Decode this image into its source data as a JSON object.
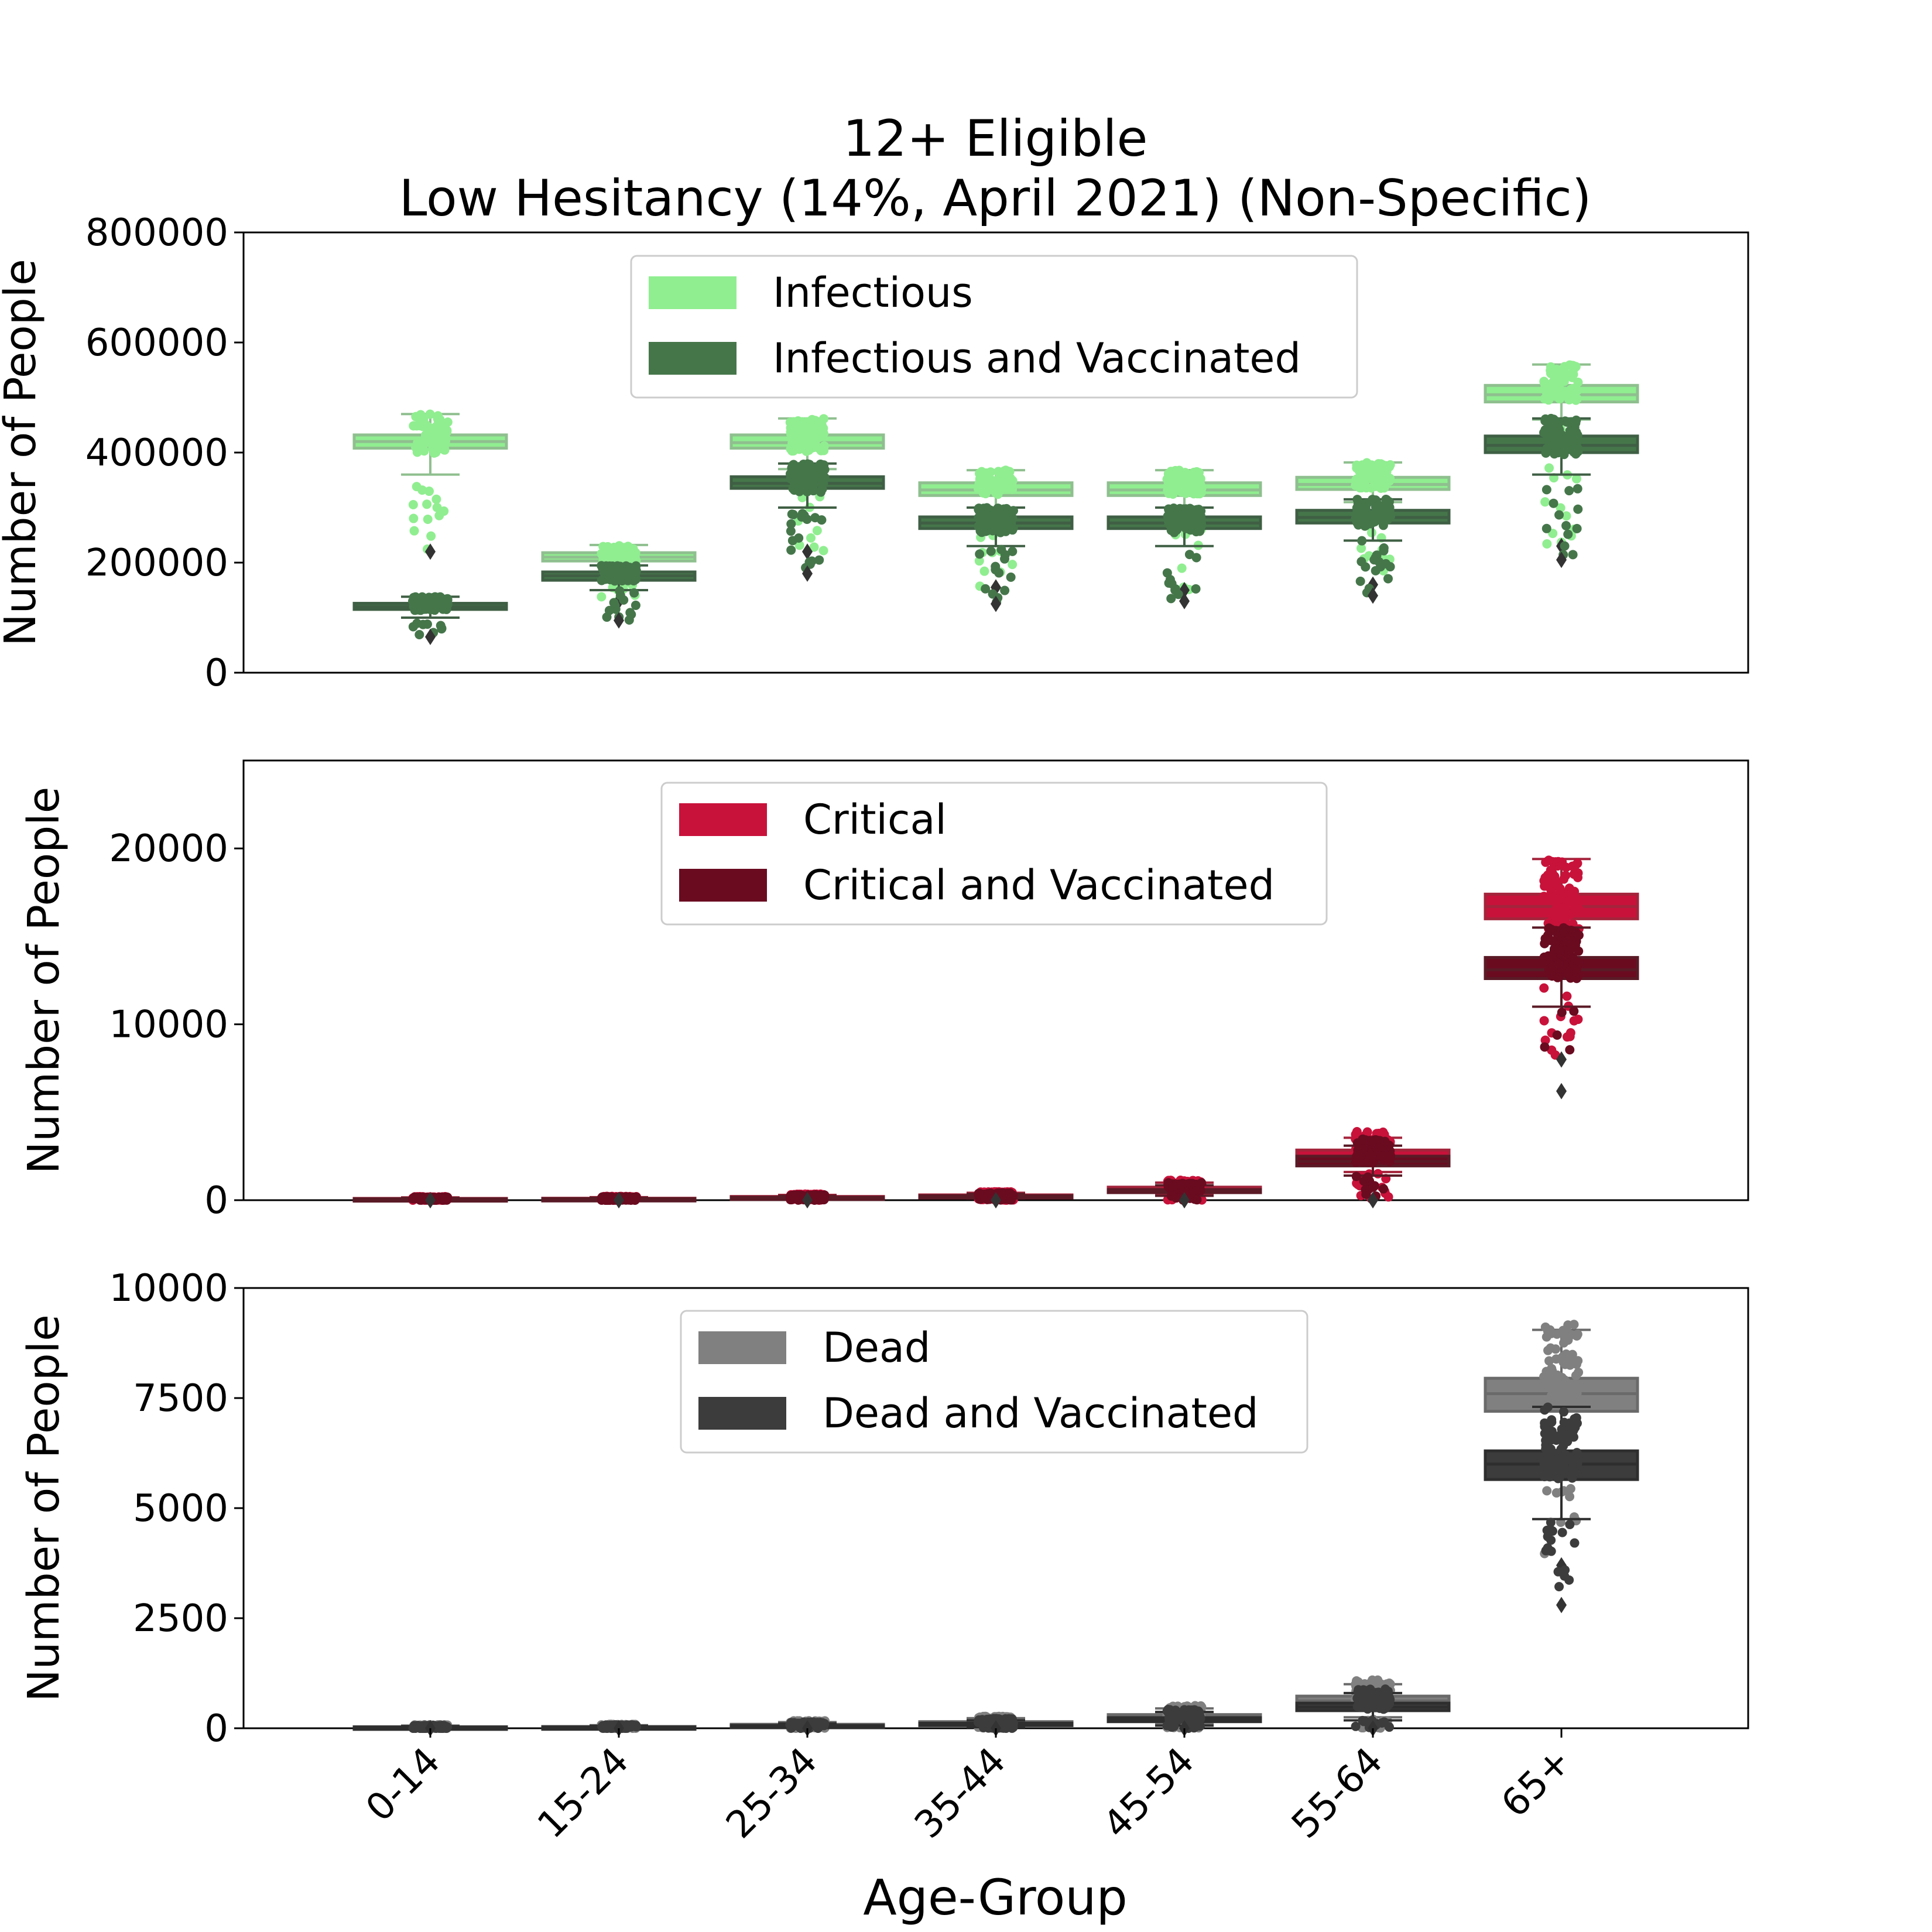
{
  "chart_data": {
    "type": "box",
    "title": [
      "12+ Eligible",
      "Low Hesitancy (14%, April 2021) (Non-Specific)"
    ],
    "xlabel": "Age-Group",
    "categories": [
      "0-14",
      "15-24",
      "25-34",
      "35-44",
      "45-54",
      "55-64",
      "65+"
    ],
    "panels": [
      {
        "ylabel": "Number of People",
        "ylim": [
          0,
          800000
        ],
        "yticks": [
          0,
          200000,
          400000,
          600000,
          800000
        ],
        "ytick_labels": [
          "0",
          "200000",
          "400000",
          "600000",
          "800000"
        ],
        "legend_position": "top-center",
        "series": [
          {
            "name": "Infectious",
            "color": "#90ee90",
            "box_color": "#8fbf8f",
            "stats": [
              {
                "q1": 408000,
                "median": 420000,
                "q3": 432000,
                "whislo": 360000,
                "whishi": 470000,
                "ptmin": 220000,
                "ptmax": 470000
              },
              {
                "q1": 203000,
                "median": 210000,
                "q3": 218000,
                "whislo": 180000,
                "whishi": 232000,
                "ptmin": 130000,
                "ptmax": 232000
              },
              {
                "q1": 408000,
                "median": 418000,
                "q3": 432000,
                "whislo": 370000,
                "whishi": 462000,
                "ptmin": 220000,
                "ptmax": 462000
              },
              {
                "q1": 322000,
                "median": 332000,
                "q3": 345000,
                "whislo": 300000,
                "whishi": 368000,
                "ptmin": 155000,
                "ptmax": 368000
              },
              {
                "q1": 322000,
                "median": 332000,
                "q3": 345000,
                "whislo": 300000,
                "whishi": 368000,
                "ptmin": 150000,
                "ptmax": 368000
              },
              {
                "q1": 333000,
                "median": 342000,
                "q3": 355000,
                "whislo": 310000,
                "whishi": 382000,
                "ptmin": 160000,
                "ptmax": 382000
              },
              {
                "q1": 492000,
                "median": 505000,
                "q3": 522000,
                "whislo": 460000,
                "whishi": 560000,
                "ptmin": 230000,
                "ptmax": 560000
              }
            ]
          },
          {
            "name": "Infectious and Vaccinated",
            "color": "#45764a",
            "box_color": "#3f5f44",
            "stats": [
              {
                "q1": 115000,
                "median": 120000,
                "q3": 126000,
                "whislo": 100000,
                "whishi": 138000,
                "ptmin": 65000,
                "ptmax": 138000
              },
              {
                "q1": 168000,
                "median": 176000,
                "q3": 183000,
                "whislo": 150000,
                "whishi": 195000,
                "ptmin": 95000,
                "ptmax": 195000
              },
              {
                "q1": 335000,
                "median": 344000,
                "q3": 356000,
                "whislo": 300000,
                "whishi": 380000,
                "ptmin": 180000,
                "ptmax": 380000
              },
              {
                "q1": 262000,
                "median": 272000,
                "q3": 283000,
                "whislo": 230000,
                "whishi": 300000,
                "ptmin": 125000,
                "ptmax": 300000
              },
              {
                "q1": 262000,
                "median": 272000,
                "q3": 283000,
                "whislo": 230000,
                "whishi": 300000,
                "ptmin": 130000,
                "ptmax": 300000
              },
              {
                "q1": 272000,
                "median": 282000,
                "q3": 295000,
                "whislo": 240000,
                "whishi": 315000,
                "ptmin": 140000,
                "ptmax": 315000
              },
              {
                "q1": 400000,
                "median": 413000,
                "q3": 430000,
                "whislo": 360000,
                "whishi": 462000,
                "ptmin": 205000,
                "ptmax": 462000
              }
            ]
          }
        ]
      },
      {
        "ylabel": "Number of People",
        "ylim": [
          0,
          25000
        ],
        "yticks": [
          0,
          10000,
          20000
        ],
        "ytick_labels": [
          "0",
          "10000",
          "20000"
        ],
        "legend_position": "top-center",
        "series": [
          {
            "name": "Critical",
            "color": "#c8123a",
            "box_color": "#a4243c",
            "stats": [
              {
                "q1": 60,
                "median": 80,
                "q3": 100,
                "whislo": 20,
                "whishi": 160,
                "ptmin": 0,
                "ptmax": 200
              },
              {
                "q1": 70,
                "median": 90,
                "q3": 110,
                "whislo": 30,
                "whishi": 170,
                "ptmin": 0,
                "ptmax": 220
              },
              {
                "q1": 150,
                "median": 180,
                "q3": 210,
                "whislo": 80,
                "whishi": 300,
                "ptmin": 0,
                "ptmax": 350
              },
              {
                "q1": 220,
                "median": 260,
                "q3": 300,
                "whislo": 120,
                "whishi": 420,
                "ptmin": 0,
                "ptmax": 480
              },
              {
                "q1": 560,
                "median": 650,
                "q3": 740,
                "whislo": 350,
                "whishi": 1000,
                "ptmin": 0,
                "ptmax": 1150
              },
              {
                "q1": 2250,
                "median": 2500,
                "q3": 2850,
                "whislo": 1600,
                "whishi": 3550,
                "ptmin": 0,
                "ptmax": 3900
              },
              {
                "q1": 16000,
                "median": 16700,
                "q3": 17400,
                "whislo": 13000,
                "whishi": 19400,
                "ptmin": 8000,
                "ptmax": 19400
              }
            ]
          },
          {
            "name": "Critical and Vaccinated",
            "color": "#6a0b20",
            "box_color": "#5a1a26",
            "stats": [
              {
                "q1": 40,
                "median": 60,
                "q3": 80,
                "whislo": 10,
                "whishi": 130,
                "ptmin": 0,
                "ptmax": 170
              },
              {
                "q1": 50,
                "median": 70,
                "q3": 90,
                "whislo": 20,
                "whishi": 140,
                "ptmin": 0,
                "ptmax": 190
              },
              {
                "q1": 110,
                "median": 140,
                "q3": 170,
                "whislo": 60,
                "whishi": 250,
                "ptmin": 0,
                "ptmax": 300
              },
              {
                "q1": 170,
                "median": 210,
                "q3": 250,
                "whislo": 90,
                "whishi": 360,
                "ptmin": 0,
                "ptmax": 420
              },
              {
                "q1": 430,
                "median": 510,
                "q3": 600,
                "whislo": 250,
                "whishi": 850,
                "ptmin": 0,
                "ptmax": 1000
              },
              {
                "q1": 1950,
                "median": 2200,
                "q3": 2500,
                "whislo": 1400,
                "whishi": 3100,
                "ptmin": 0,
                "ptmax": 3500
              },
              {
                "q1": 12600,
                "median": 13100,
                "q3": 13800,
                "whislo": 11000,
                "whishi": 15500,
                "ptmin": 6200,
                "ptmax": 15500
              }
            ]
          }
        ]
      },
      {
        "ylabel": "Number of People",
        "ylim": [
          0,
          10000
        ],
        "yticks": [
          0,
          2500,
          5000,
          7500,
          10000
        ],
        "ytick_labels": [
          "0",
          "2500",
          "5000",
          "7500",
          "10000"
        ],
        "legend_position": "top-center",
        "series": [
          {
            "name": "Dead",
            "color": "#808080",
            "box_color": "#6a6a6a",
            "stats": [
              {
                "q1": 15,
                "median": 25,
                "q3": 35,
                "whislo": 5,
                "whishi": 60,
                "ptmin": 0,
                "ptmax": 80
              },
              {
                "q1": 18,
                "median": 28,
                "q3": 40,
                "whislo": 5,
                "whishi": 70,
                "ptmin": 0,
                "ptmax": 90
              },
              {
                "q1": 50,
                "median": 70,
                "q3": 90,
                "whislo": 20,
                "whishi": 140,
                "ptmin": 0,
                "ptmax": 170
              },
              {
                "q1": 90,
                "median": 120,
                "q3": 150,
                "whislo": 40,
                "whishi": 230,
                "ptmin": 0,
                "ptmax": 270
              },
              {
                "q1": 200,
                "median": 250,
                "q3": 310,
                "whislo": 90,
                "whishi": 450,
                "ptmin": 0,
                "ptmax": 520
              },
              {
                "q1": 520,
                "median": 620,
                "q3": 730,
                "whislo": 250,
                "whishi": 1000,
                "ptmin": 0,
                "ptmax": 1100
              },
              {
                "q1": 7200,
                "median": 7600,
                "q3": 7950,
                "whislo": 6300,
                "whishi": 9050,
                "ptmin": 3700,
                "ptmax": 9200
              }
            ]
          },
          {
            "name": "Dead and Vaccinated",
            "color": "#3c3c3c",
            "box_color": "#2e2e2e",
            "stats": [
              {
                "q1": 10,
                "median": 18,
                "q3": 28,
                "whislo": 2,
                "whishi": 50,
                "ptmin": 0,
                "ptmax": 65
              },
              {
                "q1": 12,
                "median": 20,
                "q3": 30,
                "whislo": 3,
                "whishi": 55,
                "ptmin": 0,
                "ptmax": 75
              },
              {
                "q1": 35,
                "median": 50,
                "q3": 65,
                "whislo": 10,
                "whishi": 110,
                "ptmin": 0,
                "ptmax": 140
              },
              {
                "q1": 65,
                "median": 90,
                "q3": 115,
                "whislo": 25,
                "whishi": 180,
                "ptmin": 0,
                "ptmax": 220
              },
              {
                "q1": 150,
                "median": 190,
                "q3": 240,
                "whislo": 60,
                "whishi": 370,
                "ptmin": 0,
                "ptmax": 430
              },
              {
                "q1": 400,
                "median": 480,
                "q3": 570,
                "whislo": 180,
                "whishi": 800,
                "ptmin": 0,
                "ptmax": 900
              },
              {
                "q1": 5650,
                "median": 6000,
                "q3": 6300,
                "whislo": 4750,
                "whishi": 7300,
                "ptmin": 2800,
                "ptmax": 7300
              }
            ]
          }
        ]
      }
    ]
  }
}
